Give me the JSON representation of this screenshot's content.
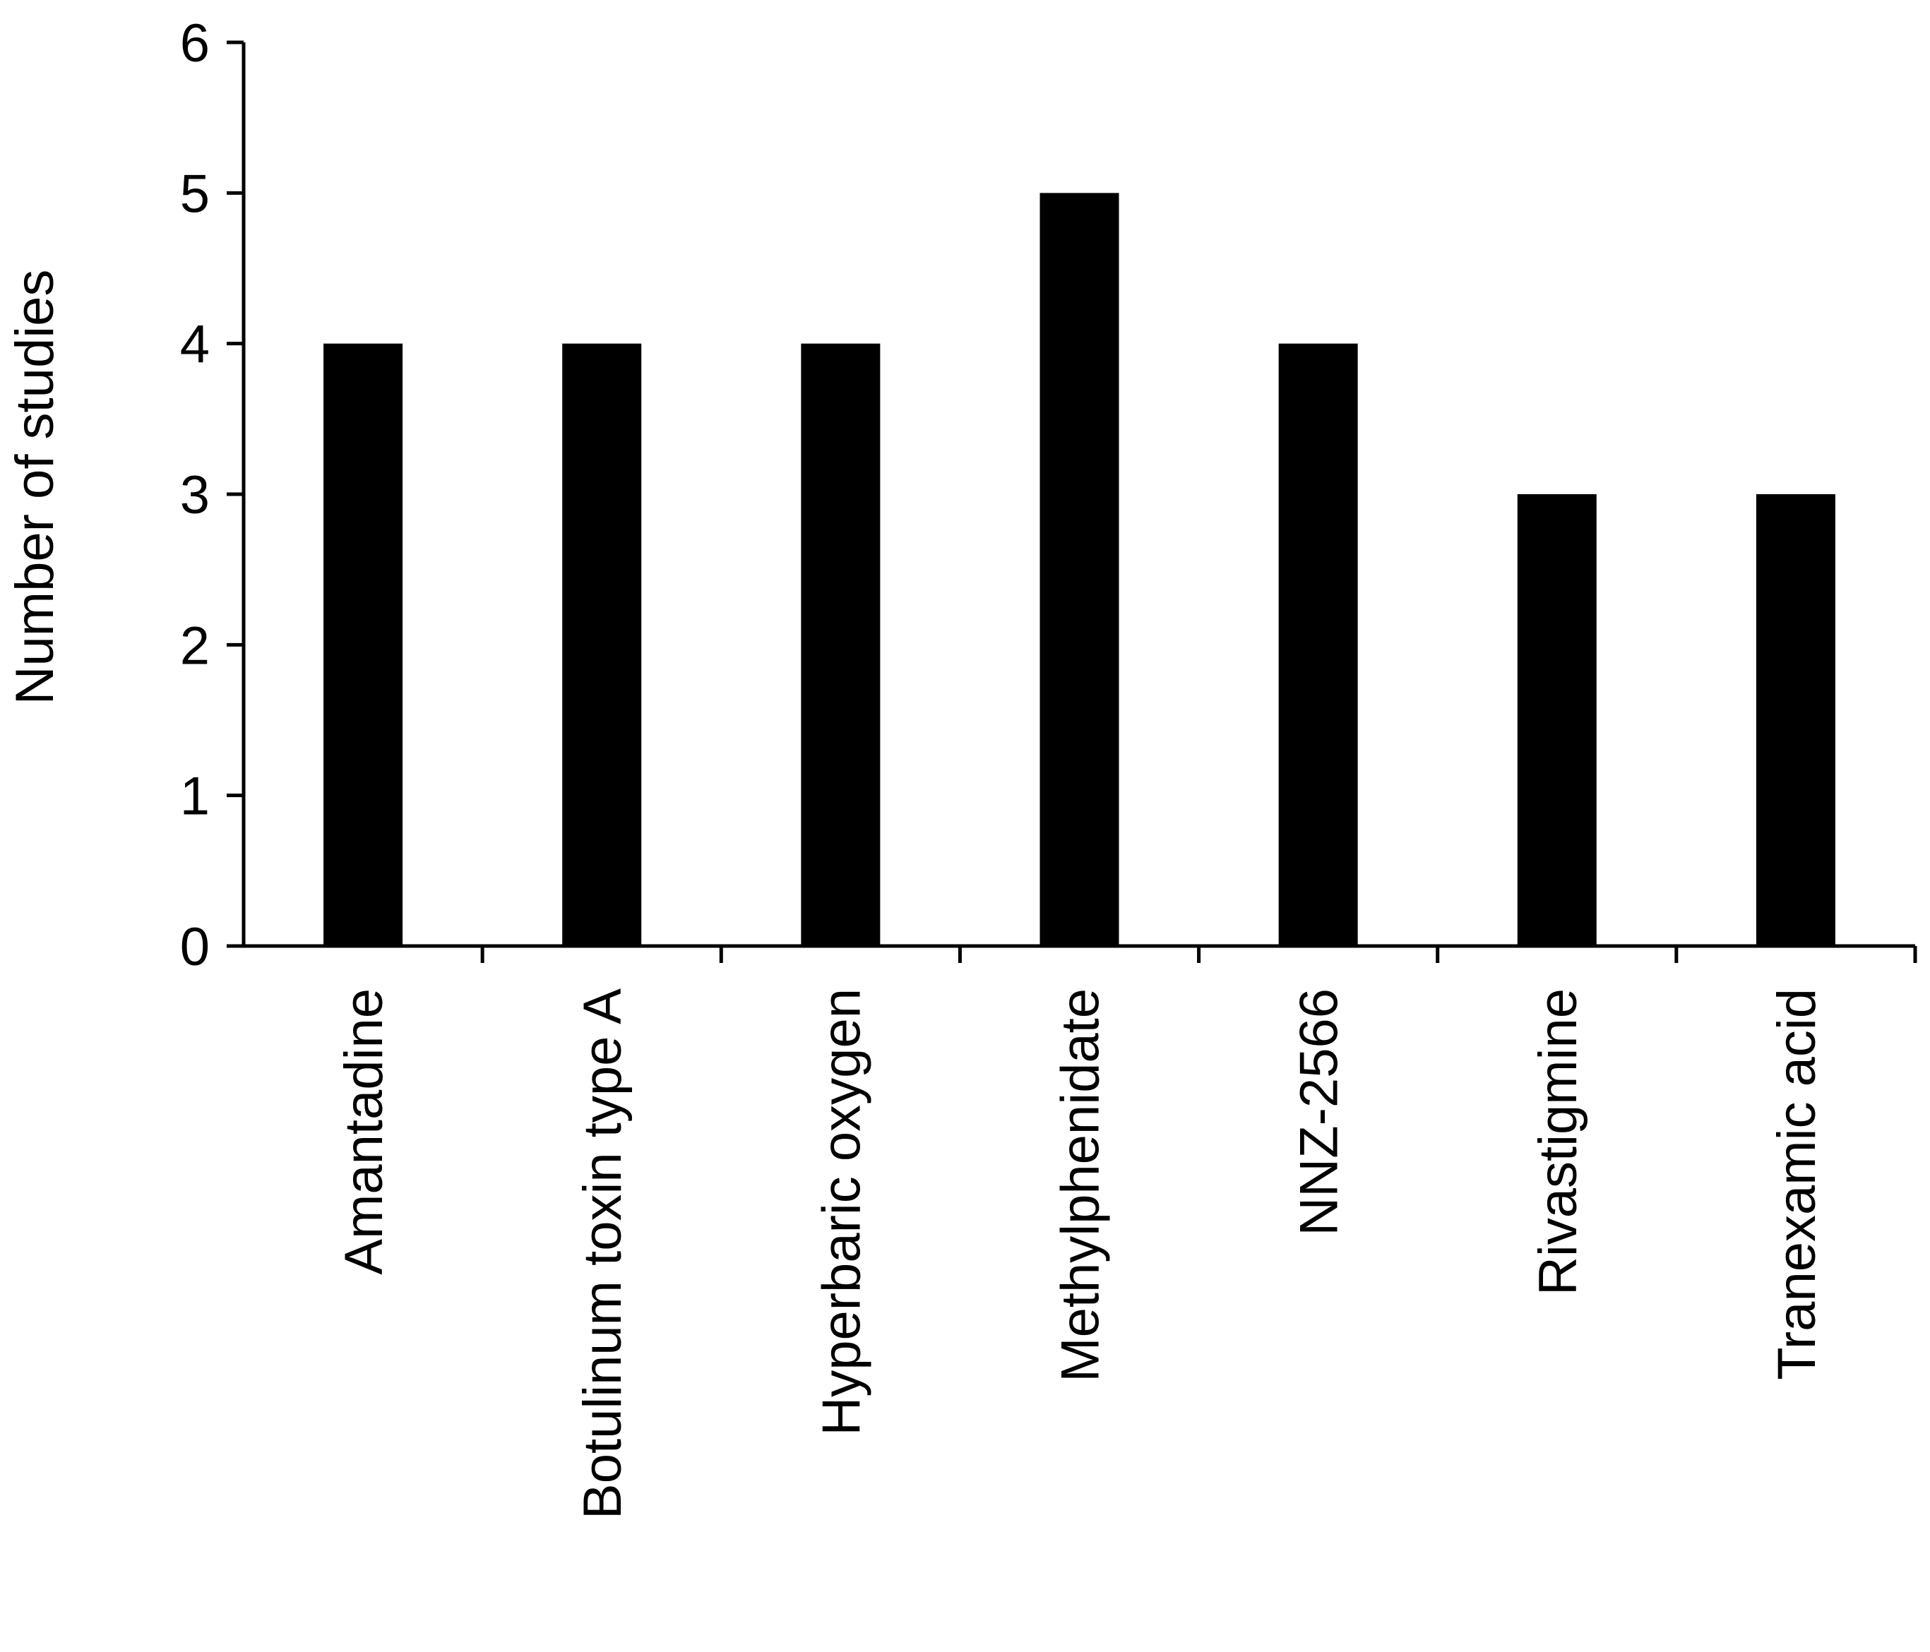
{
  "chart_data": {
    "type": "bar",
    "title": "",
    "xlabel": "",
    "ylabel": "Number of studies",
    "categories": [
      "Amantadine",
      "Botulinum toxin type A",
      "Hyperbaric oxygen",
      "Methylphenidate",
      "NNZ-2566",
      "Rivastigmine",
      "Tranexamic acid"
    ],
    "values": [
      4,
      4,
      4,
      5,
      4,
      3,
      3
    ],
    "ylim": [
      0,
      6
    ],
    "yticks": [
      "0",
      "1",
      "2",
      "3",
      "4",
      "5",
      "6"
    ],
    "grid": false,
    "legend": "none",
    "bar_color": "#000000"
  }
}
